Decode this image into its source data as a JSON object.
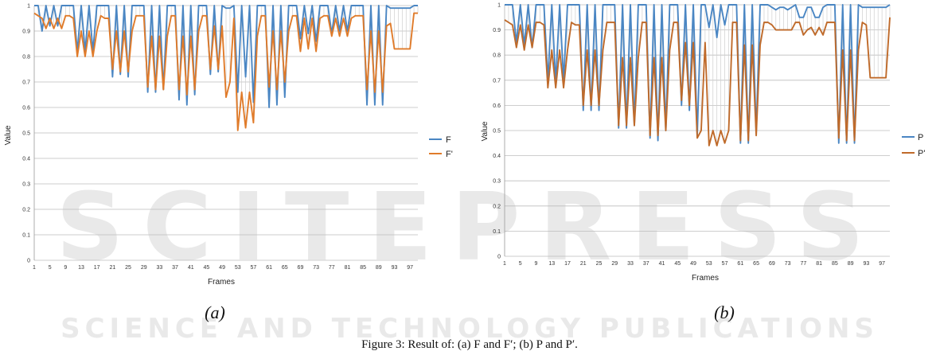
{
  "colors": {
    "series1": "#4a86c3",
    "series2": "#e07b2a",
    "series2_b": "#bf6a2a",
    "grid": "#bdbdbd",
    "vline": "#cfcfcf",
    "watermark": "#e6e6e6"
  },
  "watermark": {
    "main": "SCITEPRESS",
    "sub": "SCIENCE AND TECHNOLOGY PUBLICATIONS"
  },
  "caption": "Figure 3: Result of: (a) F and F′; (b) P and P′.",
  "chart_data": [
    {
      "type": "line",
      "panel_label": "(a)",
      "xlabel": "Frames",
      "ylabel": "Value",
      "ylim": [
        0,
        1
      ],
      "yticks": [
        "0",
        "0.1",
        "0.2",
        "0.3",
        "0.4",
        "0.5",
        "0.6",
        "0.7",
        "0.8",
        "0.9",
        "1"
      ],
      "xticks": [
        "1",
        "5",
        "9",
        "13",
        "17",
        "21",
        "25",
        "29",
        "33",
        "37",
        "41",
        "45",
        "49",
        "53",
        "57",
        "61",
        "65",
        "69",
        "73",
        "77",
        "81",
        "85",
        "89",
        "93",
        "97"
      ],
      "grid": true,
      "legend_position": "right",
      "x": [
        1,
        2,
        3,
        4,
        5,
        6,
        7,
        8,
        9,
        10,
        11,
        12,
        13,
        14,
        15,
        16,
        17,
        18,
        19,
        20,
        21,
        22,
        23,
        24,
        25,
        26,
        27,
        28,
        29,
        30,
        31,
        32,
        33,
        34,
        35,
        36,
        37,
        38,
        39,
        40,
        41,
        42,
        43,
        44,
        45,
        46,
        47,
        48,
        49,
        50,
        51,
        52,
        53,
        54,
        55,
        56,
        57,
        58,
        59,
        60,
        61,
        62,
        63,
        64,
        65,
        66,
        67,
        68,
        69,
        70,
        71,
        72,
        73,
        74,
        75,
        76,
        77,
        78,
        79,
        80,
        81,
        82,
        83,
        84,
        85,
        86,
        87,
        88,
        89,
        90,
        91,
        92,
        93,
        94,
        95,
        96,
        97,
        98,
        99
      ],
      "series": [
        {
          "name": "F",
          "values": [
            1,
            1,
            0.9,
            1,
            0.92,
            1,
            0.92,
            1,
            1,
            1,
            1,
            0.82,
            1,
            0.82,
            1,
            0.82,
            1,
            1,
            1,
            1,
            0.72,
            1,
            0.73,
            1,
            0.72,
            1,
            1,
            1,
            1,
            0.66,
            1,
            0.66,
            1,
            0.67,
            1,
            1,
            1,
            0.63,
            1,
            0.61,
            1,
            0.65,
            1,
            1,
            1,
            0.73,
            1,
            0.74,
            1,
            0.99,
            0.99,
            1,
            0.66,
            1,
            0.72,
            1,
            0.62,
            1,
            1,
            1,
            0.6,
            1,
            0.61,
            1,
            0.64,
            1,
            1,
            1,
            0.87,
            1,
            0.89,
            1,
            0.86,
            1,
            1,
            1,
            0.89,
            1,
            0.9,
            1,
            0.9,
            1,
            1,
            1,
            1,
            0.61,
            1,
            0.61,
            1,
            0.61,
            1,
            0.99,
            0.99,
            0.99,
            0.99,
            0.99,
            0.99,
            1,
            1
          ]
        },
        {
          "name": "F'",
          "values": [
            0.97,
            0.96,
            0.95,
            0.91,
            0.95,
            0.91,
            0.95,
            0.91,
            0.96,
            0.96,
            0.95,
            0.8,
            0.9,
            0.8,
            0.9,
            0.8,
            0.9,
            0.96,
            0.95,
            0.95,
            0.75,
            0.9,
            0.74,
            0.9,
            0.74,
            0.9,
            0.96,
            0.96,
            0.96,
            0.68,
            0.88,
            0.67,
            0.88,
            0.67,
            0.88,
            0.96,
            0.96,
            0.67,
            0.88,
            0.65,
            0.88,
            0.67,
            0.9,
            0.96,
            0.96,
            0.75,
            0.92,
            0.75,
            0.92,
            0.64,
            0.7,
            0.95,
            0.51,
            0.66,
            0.52,
            0.66,
            0.54,
            0.88,
            0.96,
            0.96,
            0.68,
            0.9,
            0.67,
            0.9,
            0.7,
            0.9,
            0.96,
            0.96,
            0.82,
            0.95,
            0.83,
            0.95,
            0.82,
            0.95,
            0.96,
            0.96,
            0.88,
            0.95,
            0.88,
            0.95,
            0.88,
            0.95,
            0.96,
            0.96,
            0.96,
            0.67,
            0.9,
            0.66,
            0.9,
            0.66,
            0.92,
            0.93,
            0.83,
            0.83,
            0.83,
            0.83,
            0.83,
            0.97,
            0.97
          ]
        }
      ]
    },
    {
      "type": "line",
      "panel_label": "(b)",
      "xlabel": "Frames",
      "ylabel": "Value",
      "ylim": [
        0,
        1
      ],
      "yticks": [
        "0",
        "0.1",
        "0.2",
        "0.3",
        "0.4",
        "0.5",
        "0.6",
        "0.7",
        "0.8",
        "0.9",
        "1"
      ],
      "xticks": [
        "1",
        "5",
        "9",
        "13",
        "17",
        "21",
        "25",
        "29",
        "33",
        "37",
        "41",
        "45",
        "49",
        "53",
        "57",
        "61",
        "65",
        "69",
        "73",
        "77",
        "81",
        "85",
        "89",
        "93",
        "97"
      ],
      "grid": true,
      "legend_position": "right",
      "x": [
        1,
        2,
        3,
        4,
        5,
        6,
        7,
        8,
        9,
        10,
        11,
        12,
        13,
        14,
        15,
        16,
        17,
        18,
        19,
        20,
        21,
        22,
        23,
        24,
        25,
        26,
        27,
        28,
        29,
        30,
        31,
        32,
        33,
        34,
        35,
        36,
        37,
        38,
        39,
        40,
        41,
        42,
        43,
        44,
        45,
        46,
        47,
        48,
        49,
        50,
        51,
        52,
        53,
        54,
        55,
        56,
        57,
        58,
        59,
        60,
        61,
        62,
        63,
        64,
        65,
        66,
        67,
        68,
        69,
        70,
        71,
        72,
        73,
        74,
        75,
        76,
        77,
        78,
        79,
        80,
        81,
        82,
        83,
        84,
        85,
        86,
        87,
        88,
        89,
        90,
        91,
        92,
        93,
        94,
        95,
        96,
        97,
        98,
        99
      ],
      "series": [
        {
          "name": "P",
          "values": [
            1,
            1,
            1,
            0.85,
            1,
            0.84,
            1,
            0.83,
            1,
            1,
            1,
            0.7,
            1,
            0.69,
            1,
            0.7,
            1,
            1,
            1,
            1,
            0.58,
            1,
            0.58,
            1,
            0.58,
            1,
            1,
            1,
            1,
            0.51,
            1,
            0.51,
            1,
            0.52,
            1,
            1,
            1,
            0.47,
            1,
            0.46,
            1,
            0.5,
            1,
            1,
            1,
            0.6,
            1,
            0.58,
            1,
            0.48,
            1,
            1,
            0.91,
            1,
            0.87,
            1,
            0.92,
            1,
            1,
            1,
            0.45,
            1,
            0.45,
            1,
            0.49,
            1,
            1,
            1,
            0.99,
            0.98,
            0.99,
            0.99,
            0.98,
            0.99,
            1,
            0.95,
            0.95,
            0.99,
            0.99,
            0.95,
            0.95,
            0.99,
            1,
            1,
            1,
            0.45,
            1,
            0.45,
            1,
            0.45,
            1,
            0.99,
            0.99,
            0.99,
            0.99,
            0.99,
            0.99,
            0.99,
            1
          ]
        },
        {
          "name": "P'",
          "values": [
            0.94,
            0.93,
            0.92,
            0.83,
            0.92,
            0.82,
            0.92,
            0.83,
            0.93,
            0.93,
            0.92,
            0.67,
            0.82,
            0.67,
            0.82,
            0.67,
            0.82,
            0.93,
            0.92,
            0.92,
            0.6,
            0.82,
            0.6,
            0.82,
            0.6,
            0.82,
            0.93,
            0.93,
            0.93,
            0.52,
            0.79,
            0.52,
            0.79,
            0.52,
            0.79,
            0.93,
            0.93,
            0.48,
            0.79,
            0.48,
            0.79,
            0.5,
            0.82,
            0.93,
            0.93,
            0.62,
            0.85,
            0.6,
            0.85,
            0.47,
            0.5,
            0.85,
            0.44,
            0.5,
            0.44,
            0.5,
            0.45,
            0.5,
            0.93,
            0.93,
            0.46,
            0.84,
            0.46,
            0.84,
            0.48,
            0.84,
            0.93,
            0.93,
            0.92,
            0.9,
            0.9,
            0.9,
            0.9,
            0.9,
            0.93,
            0.93,
            0.88,
            0.9,
            0.91,
            0.88,
            0.91,
            0.88,
            0.93,
            0.93,
            0.93,
            0.47,
            0.82,
            0.46,
            0.82,
            0.46,
            0.82,
            0.93,
            0.92,
            0.71,
            0.71,
            0.71,
            0.71,
            0.71,
            0.95
          ]
        }
      ]
    }
  ]
}
